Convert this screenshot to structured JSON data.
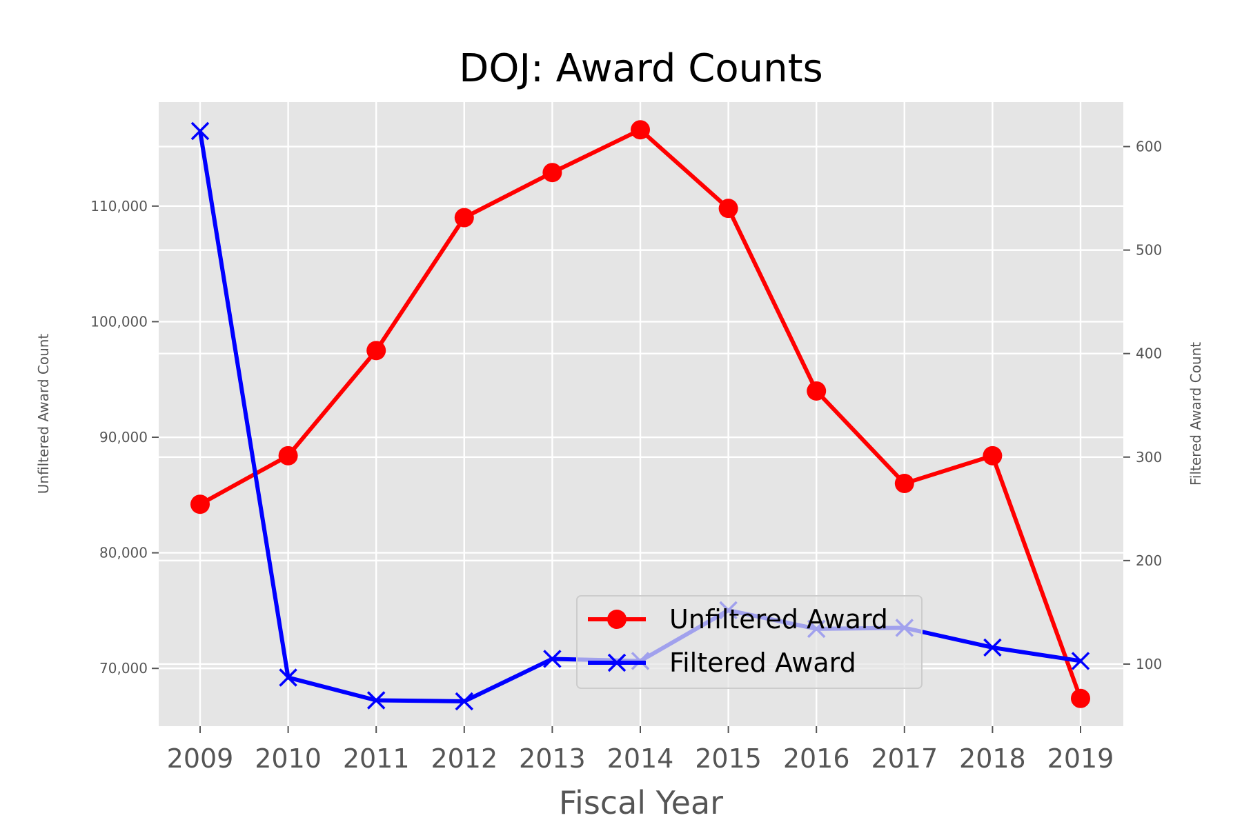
{
  "chart_data": {
    "type": "line",
    "title": "DOJ: Award Counts",
    "xlabel": "Fiscal Year",
    "ylabel_left": "Unfiltered Award Count",
    "ylabel_right": "Filtered Award Count",
    "categories": [
      "2009",
      "2010",
      "2011",
      "2012",
      "2013",
      "2014",
      "2015",
      "2016",
      "2017",
      "2018",
      "2019"
    ],
    "y_left_lim": [
      65000,
      119000
    ],
    "y_right_lim": [
      40,
      643
    ],
    "y_left_ticks": [
      70000,
      80000,
      90000,
      100000,
      110000
    ],
    "y_left_tick_labels": [
      "70,000",
      "80,000",
      "90,000",
      "100,000",
      "110,000"
    ],
    "y_right_ticks": [
      100,
      200,
      300,
      400,
      500,
      600
    ],
    "y_right_tick_labels": [
      "100",
      "200",
      "300",
      "400",
      "500",
      "600"
    ],
    "grid": true,
    "legend_position": "lower-right",
    "series": [
      {
        "name": "Unfiltered Award",
        "axis": "left",
        "color": "#ff0000",
        "marker": "circle",
        "values": [
          84200,
          88400,
          97500,
          109000,
          112900,
          116600,
          109800,
          94000,
          86000,
          88400,
          67400
        ]
      },
      {
        "name": "Filtered Award",
        "axis": "right",
        "color": "#0000ff",
        "marker": "x",
        "values": [
          615,
          87,
          65,
          64,
          105,
          103,
          152,
          134,
          135,
          116,
          103
        ]
      }
    ]
  }
}
